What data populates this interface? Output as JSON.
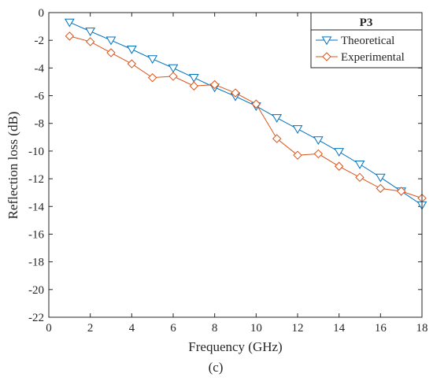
{
  "chart_data": {
    "type": "line",
    "xlabel": "Frequency (GHz)",
    "ylabel": "Reflection loss (dB)",
    "xlim": [
      0,
      18
    ],
    "ylim": [
      -22,
      0
    ],
    "xticks": [
      "0",
      "2",
      "4",
      "6",
      "8",
      "10",
      "12",
      "14",
      "16",
      "18"
    ],
    "yticks": [
      "0",
      "-2",
      "-4",
      "-6",
      "-8",
      "-10",
      "-12",
      "-14",
      "-16",
      "-18",
      "-20",
      "-22"
    ],
    "grid": false,
    "legend_position": "top-right",
    "legend_title": "P3",
    "caption": "(c)",
    "x": [
      1,
      2,
      3,
      4,
      5,
      6,
      7,
      8,
      9,
      10,
      11,
      12,
      13,
      14,
      15,
      16,
      17,
      18
    ],
    "series": [
      {
        "name": "Theoretical",
        "color": "#0072BD",
        "marker": "triangle-down",
        "values": [
          -0.7,
          -1.35,
          -2.0,
          -2.65,
          -3.35,
          -4.0,
          -4.7,
          -5.4,
          -6.05,
          -6.75,
          -7.6,
          -8.4,
          -9.2,
          -10.05,
          -10.95,
          -11.9,
          -12.9,
          -13.9
        ]
      },
      {
        "name": "Experimental",
        "color": "#D95319",
        "marker": "diamond",
        "values": [
          -1.7,
          -2.1,
          -2.9,
          -3.7,
          -4.7,
          -4.6,
          -5.3,
          -5.2,
          -5.8,
          -6.6,
          -9.1,
          -10.3,
          -10.2,
          -11.1,
          -11.9,
          -12.7,
          -12.9,
          -13.4
        ]
      }
    ]
  }
}
